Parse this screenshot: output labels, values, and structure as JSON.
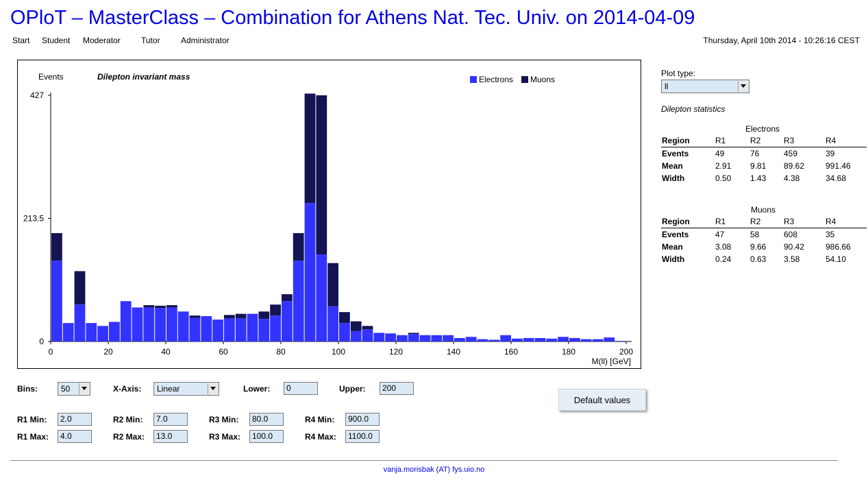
{
  "header": {
    "title": "OPloT – MasterClass – Combination for Athens Nat. Tec. Univ. on 2014-04-09",
    "datetime": "Thursday, April 10th 2014 - 10:26:16 CEST"
  },
  "nav": {
    "items": [
      "Start",
      "Student",
      "Moderator",
      "Tutor",
      "Administrator"
    ]
  },
  "colors": {
    "electrons": "#3333ff",
    "muons": "#141452",
    "title": "#0000e6"
  },
  "chart_data": {
    "type": "bar",
    "stacked": true,
    "title": "Dilepton invariant mass",
    "ylabel": "Events",
    "xlabel": "M(ll) [GeV]",
    "xlim": [
      0,
      200
    ],
    "ylim": [
      0,
      427
    ],
    "yticks": [
      "427",
      "213.5",
      "0"
    ],
    "xticks": [
      "0",
      "20",
      "40",
      "60",
      "80",
      "100",
      "120",
      "140",
      "160",
      "180",
      "200"
    ],
    "bin_width": 4,
    "legend": "top-right",
    "series": [
      {
        "name": "Electrons",
        "color": "#3333ff",
        "values": [
          140,
          32,
          64,
          32,
          27,
          34,
          70,
          59,
          59,
          58,
          59,
          52,
          41,
          44,
          38,
          40,
          40,
          48,
          39,
          45,
          70,
          140,
          240,
          151,
          61,
          32,
          18,
          21,
          15,
          14,
          11,
          13,
          11,
          11,
          11,
          6,
          8,
          4,
          3,
          11,
          5,
          6,
          6,
          5,
          8,
          6,
          4,
          4,
          7,
          1
        ]
      },
      {
        "name": "Muons",
        "color": "#141452",
        "values": [
          48,
          0,
          58,
          0,
          0,
          0,
          0,
          0,
          4,
          4,
          4,
          0,
          4,
          0,
          0,
          6,
          8,
          0,
          13,
          19,
          12,
          48,
          190,
          276,
          75,
          19,
          17,
          6,
          0,
          0,
          0,
          2,
          0,
          0,
          0,
          0,
          0,
          0,
          0,
          0,
          0,
          0,
          0,
          0,
          0,
          0,
          0,
          0,
          0,
          0
        ]
      }
    ]
  },
  "side": {
    "plot_type_label": "Plot type:",
    "plot_type_value": "ll",
    "stats_title": "Dilepton statistics",
    "electrons": {
      "title": "Electrons",
      "header": [
        "Region",
        "R1",
        "R2",
        "R3",
        "R4"
      ],
      "rows": [
        [
          "Events",
          "49",
          "76",
          "459",
          "39"
        ],
        [
          "Mean",
          "2.91",
          "9.81",
          "89.62",
          "991.46"
        ],
        [
          "Width",
          "0.50",
          "1.43",
          "4.38",
          "34.68"
        ]
      ]
    },
    "muons": {
      "title": "Muons",
      "header": [
        "Region",
        "R1",
        "R2",
        "R3",
        "R4"
      ],
      "rows": [
        [
          "Events",
          "47",
          "58",
          "608",
          "35"
        ],
        [
          "Mean",
          "3.08",
          "9.66",
          "90.42",
          "986.66"
        ],
        [
          "Width",
          "0.24",
          "0.63",
          "3.58",
          "54.10"
        ]
      ]
    }
  },
  "controls": {
    "bins_label": "Bins:",
    "bins_value": "50",
    "xaxis_label": "X-Axis:",
    "xaxis_value": "Linear",
    "lower_label": "Lower:",
    "lower_value": "0",
    "upper_label": "Upper:",
    "upper_value": "200",
    "default_button": "Default values",
    "r1min_label": "R1 Min:",
    "r1min": "2.0",
    "r1max_label": "R1 Max:",
    "r1max": "4.0",
    "r2min_label": "R2 Min:",
    "r2min": "7.0",
    "r2max_label": "R2 Max:",
    "r2max": "13.0",
    "r3min_label": "R3 Min:",
    "r3min": "80.0",
    "r3max_label": "R3 Max:",
    "r3max": "100.0",
    "r4min_label": "R4 Min:",
    "r4min": "900.0",
    "r4max_label": "R4 Max:",
    "r4max": "1100.0"
  },
  "footer": {
    "contact": "vanja.morisbak (AT) fys.uio.no"
  }
}
